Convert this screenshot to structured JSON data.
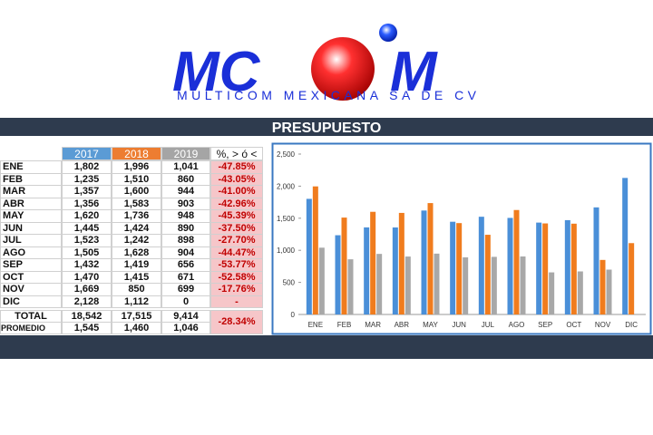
{
  "logo": {
    "left": "MC",
    "right": "M",
    "subtitle": "MULTICOM MEXICANA SA DE CV"
  },
  "title": "PRESUPUESTO",
  "table": {
    "columns": [
      "2017",
      "2018",
      "2019",
      "%, > ó <"
    ],
    "rows": [
      [
        "ENE",
        "1,802",
        "1,996",
        "1,041",
        "-47.85%"
      ],
      [
        "FEB",
        "1,235",
        "1,510",
        "860",
        "-43.05%"
      ],
      [
        "MAR",
        "1,357",
        "1,600",
        "944",
        "-41.00%"
      ],
      [
        "ABR",
        "1,356",
        "1,583",
        "903",
        "-42.96%"
      ],
      [
        "MAY",
        "1,620",
        "1,736",
        "948",
        "-45.39%"
      ],
      [
        "JUN",
        "1,445",
        "1,424",
        "890",
        "-37.50%"
      ],
      [
        "JUL",
        "1,523",
        "1,242",
        "898",
        "-27.70%"
      ],
      [
        "AGO",
        "1,505",
        "1,628",
        "904",
        "-44.47%"
      ],
      [
        "SEP",
        "1,432",
        "1,419",
        "656",
        "-53.77%"
      ],
      [
        "OCT",
        "1,470",
        "1,415",
        "671",
        "-52.58%"
      ],
      [
        "NOV",
        "1,669",
        "850",
        "699",
        "-17.76%"
      ],
      [
        "DIC",
        "2,128",
        "1,112",
        "0",
        "-"
      ]
    ],
    "totals": [
      [
        "TOTAL",
        "18,542",
        "17,515",
        "9,414"
      ],
      [
        "PROMEDIO",
        "1,545",
        "1,460",
        "1,046"
      ]
    ],
    "total_change": "-28.34%"
  },
  "chart_data": {
    "type": "bar",
    "categories": [
      "ENE",
      "FEB",
      "MAR",
      "ABR",
      "MAY",
      "JUN",
      "JUL",
      "AGO",
      "SEP",
      "OCT",
      "NOV",
      "DIC"
    ],
    "series": [
      {
        "color": "#4a8fd8",
        "values": [
          1802,
          1235,
          1357,
          1356,
          1620,
          1445,
          1523,
          1505,
          1432,
          1470,
          1669,
          2128
        ]
      },
      {
        "color": "#f07c1e",
        "values": [
          1996,
          1510,
          1600,
          1583,
          1736,
          1424,
          1242,
          1628,
          1419,
          1415,
          850,
          1112
        ]
      },
      {
        "color": "#a8a8a8",
        "values": [
          1041,
          860,
          944,
          903,
          948,
          890,
          898,
          904,
          656,
          671,
          699,
          0
        ]
      }
    ],
    "ylim": [
      0,
      2500
    ],
    "yticks": [
      0,
      500,
      {
        "value": 1000,
        "label": "1,000"
      },
      {
        "value": 1500,
        "label": "1,500"
      },
      {
        "value": 2000,
        "label": "2,000"
      },
      {
        "value": 2500,
        "label": "2,500"
      }
    ]
  }
}
